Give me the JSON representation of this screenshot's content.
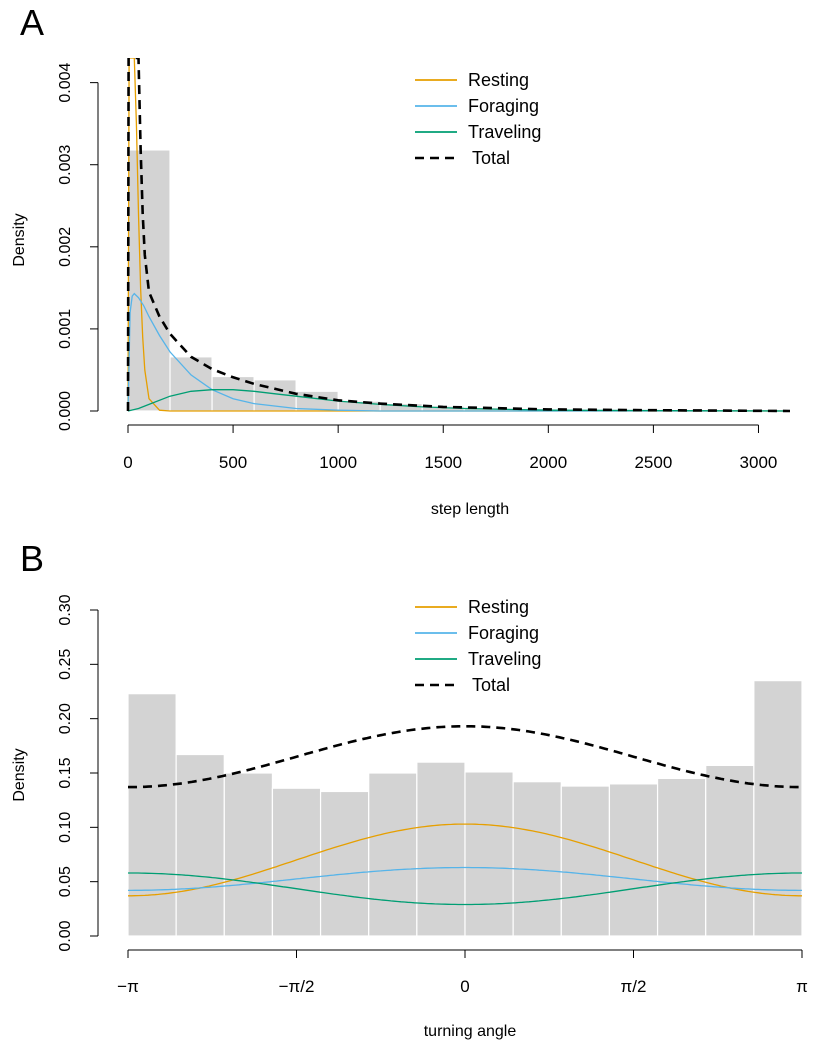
{
  "panels": [
    {
      "letter": "A"
    },
    {
      "letter": "B"
    }
  ],
  "legend": [
    {
      "label": "Resting",
      "color": "#E69F00",
      "dash": false
    },
    {
      "label": "Foraging",
      "color": "#56B4E9",
      "dash": false
    },
    {
      "label": "Traveling",
      "color": "#009E73",
      "dash": false
    },
    {
      "label": "Total",
      "color": "#000000",
      "dash": true
    }
  ],
  "chart_data": [
    {
      "type": "bar",
      "subtype": "histogram-with-density-lines",
      "xlabel": "step length",
      "ylabel": "Density",
      "xlim": [
        0,
        3150
      ],
      "ylim": [
        0,
        0.0043
      ],
      "xticks": [
        0,
        500,
        1000,
        1500,
        2000,
        2500,
        3000
      ],
      "xtick_labels": [
        "0",
        "500",
        "1000",
        "1500",
        "2000",
        "2500",
        "3000"
      ],
      "yticks": [
        0.0,
        0.001,
        0.002,
        0.003,
        0.004
      ],
      "ytick_labels": [
        "0.000",
        "0.001",
        "0.002",
        "0.003",
        "0.004"
      ],
      "legend_position": "top-right",
      "histogram": {
        "bin_width": 200,
        "bin_starts": [
          0,
          200,
          400,
          600,
          800,
          1000,
          1200,
          1400,
          1600,
          1800,
          2000,
          2200,
          2400,
          2600,
          2800,
          3000
        ],
        "values": [
          0.00318,
          0.00066,
          0.00042,
          0.00038,
          0.00024,
          0.00012,
          9e-05,
          6e-05,
          4e-05,
          3e-05,
          2e-05,
          2e-05,
          1e-05,
          1e-05,
          1e-05,
          1e-05
        ]
      },
      "series": [
        {
          "name": "Resting",
          "color": "#E69F00",
          "dash": false,
          "x": [
            0,
            5,
            10,
            15,
            20,
            25,
            30,
            40,
            50,
            60,
            70,
            80,
            100,
            150,
            200,
            3150
          ],
          "y": [
            0,
            0.0043,
            0.0043,
            0.0043,
            0.0043,
            0.0043,
            0.0043,
            0.0035,
            0.0024,
            0.0015,
            0.0009,
            0.0005,
            0.00015,
            1e-05,
            0,
            0
          ]
        },
        {
          "name": "Foraging",
          "color": "#56B4E9",
          "dash": false,
          "x": [
            0,
            10,
            20,
            30,
            50,
            75,
            100,
            150,
            200,
            300,
            400,
            500,
            600,
            800,
            1000,
            1200,
            1500,
            2000,
            3150
          ],
          "y": [
            0,
            0.0012,
            0.0014,
            0.00143,
            0.00138,
            0.00128,
            0.00115,
            0.00092,
            0.00072,
            0.00044,
            0.00026,
            0.00015,
            9e-05,
            3e-05,
            1e-05,
            0,
            0,
            0,
            0
          ]
        },
        {
          "name": "Traveling",
          "color": "#009E73",
          "dash": false,
          "x": [
            0,
            50,
            100,
            200,
            300,
            400,
            500,
            600,
            700,
            800,
            1000,
            1200,
            1400,
            1600,
            2000,
            3150
          ],
          "y": [
            0,
            3e-05,
            8e-05,
            0.00018,
            0.00024,
            0.00026,
            0.00026,
            0.00024,
            0.00021,
            0.00018,
            0.00012,
            8e-05,
            5e-05,
            3e-05,
            1e-05,
            0
          ]
        },
        {
          "name": "Total",
          "color": "#000000",
          "dash": true,
          "x": [
            0,
            3,
            6,
            10,
            20,
            30,
            40,
            50,
            60,
            70,
            80,
            100,
            150,
            200,
            300,
            400,
            500,
            600,
            800,
            1000,
            1200,
            1500,
            2000,
            2500,
            3150
          ],
          "y": [
            0,
            0.0043,
            0.0043,
            0.0043,
            0.0043,
            0.0043,
            0.0043,
            0.0043,
            0.0032,
            0.0024,
            0.0019,
            0.00145,
            0.00115,
            0.00094,
            0.00066,
            0.00051,
            0.00041,
            0.00033,
            0.00021,
            0.00013,
            9e-05,
            5e-05,
            2e-05,
            1e-05,
            0
          ]
        }
      ]
    },
    {
      "type": "bar",
      "subtype": "histogram-with-density-lines",
      "xlabel": "turning angle",
      "ylabel": "Density",
      "xlim": [
        -3.14159,
        3.14159
      ],
      "ylim": [
        0,
        0.3
      ],
      "xticks": [
        -3.14159,
        -1.5708,
        0,
        1.5708,
        3.14159
      ],
      "xtick_labels": [
        "−π",
        "−π/2",
        "0",
        "π/2",
        "π"
      ],
      "yticks": [
        0.0,
        0.05,
        0.1,
        0.15,
        0.2,
        0.25,
        0.3
      ],
      "ytick_labels": [
        "0.00",
        "0.05",
        "0.10",
        "0.15",
        "0.20",
        "0.25",
        "0.30"
      ],
      "legend_position": "top-center",
      "histogram": {
        "bin_width": 0.4488,
        "bin_starts": [
          -3.14159,
          -2.69279,
          -2.24399,
          -1.79519,
          -1.34639,
          -0.8976,
          -0.4488,
          0,
          0.4488,
          0.8976,
          1.34639,
          1.79519,
          2.24399,
          2.69279
        ],
        "values": [
          0.223,
          0.167,
          0.15,
          0.136,
          0.133,
          0.15,
          0.16,
          0.151,
          0.142,
          0.138,
          0.14,
          0.145,
          0.157,
          0.235
        ]
      },
      "series": [
        {
          "name": "Resting",
          "color": "#E69F00",
          "dash": false,
          "model": "a + b*cos(x)",
          "params": [
            0.07,
            0.033
          ]
        },
        {
          "name": "Foraging",
          "color": "#56B4E9",
          "dash": false,
          "model": "a + b*cos(x)",
          "params": [
            0.0525,
            0.0105
          ]
        },
        {
          "name": "Traveling",
          "color": "#009E73",
          "dash": false,
          "model": "a + b*cos(x)",
          "params": [
            0.0435,
            -0.0145
          ]
        },
        {
          "name": "Total",
          "color": "#000000",
          "dash": true,
          "model": "a + b*cos(x)",
          "params": [
            0.165,
            0.028
          ]
        }
      ]
    }
  ]
}
